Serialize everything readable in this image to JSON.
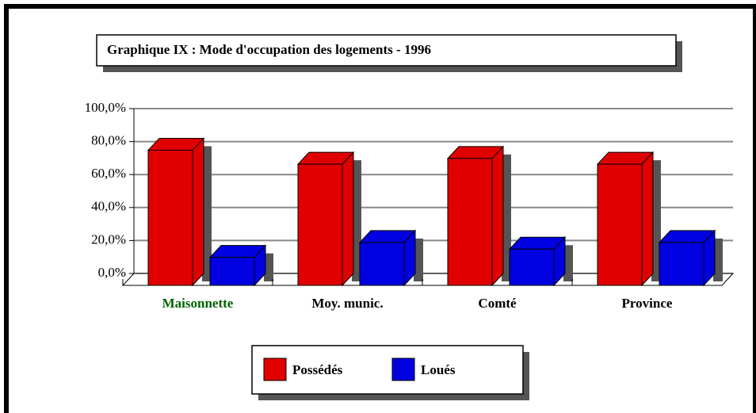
{
  "chart_data": {
    "type": "bar3d",
    "title": "Graphique IX : Mode d'occupation des logements - 1996",
    "categories": [
      "Maisonnette",
      "Moy. munic.",
      "Comté",
      "Province"
    ],
    "category_label_colors": [
      "#006400",
      "#000000",
      "#000000",
      "#000000"
    ],
    "series": [
      {
        "name": "Possédés",
        "color": "#e00000",
        "values": [
          82,
          73.5,
          77,
          73.5
        ]
      },
      {
        "name": "Loués",
        "color": "#0000e0",
        "values": [
          17,
          26,
          22,
          26
        ]
      }
    ],
    "ylim": [
      0,
      100
    ],
    "yticks": [
      {
        "value": 0,
        "label": "0,0%"
      },
      {
        "value": 20,
        "label": "20,0%"
      },
      {
        "value": 40,
        "label": "40,0%"
      },
      {
        "value": 60,
        "label": "60,0%"
      },
      {
        "value": 80,
        "label": "80,0%"
      },
      {
        "value": 100,
        "label": "100,0%"
      }
    ],
    "grid": true
  }
}
